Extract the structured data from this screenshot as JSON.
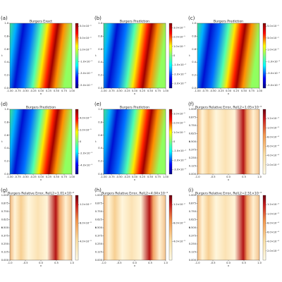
{
  "chart_data": [
    {
      "type": "heatmap",
      "label": "(a)",
      "title": "Burgers Exact",
      "xlabel": "x",
      "ylabel": "t",
      "colormap": "jet",
      "xlim": [
        -1,
        1
      ],
      "ylim": [
        0,
        1
      ],
      "xticks": [
        {
          "value": -1,
          "label": "-1.00"
        },
        {
          "value": -0.75,
          "label": "-0.75"
        },
        {
          "value": -0.5,
          "label": "-0.50"
        },
        {
          "value": -0.25,
          "label": "-0.25"
        },
        {
          "value": 0,
          "label": "0.00"
        },
        {
          "value": 0.25,
          "label": "0.25"
        },
        {
          "value": 0.5,
          "label": "0.50"
        },
        {
          "value": 0.75,
          "label": "0.75"
        },
        {
          "value": 1,
          "label": "1.00"
        }
      ],
      "yticks": [
        {
          "value": 0,
          "label": "0.0"
        },
        0.2,
        0.4,
        0.6,
        0.8,
        {
          "value": 1,
          "label": "1.0"
        }
      ],
      "clim": [
        -0.55,
        0.55
      ],
      "cticks": [
        {
          "value": 0.5,
          "label": "5.0×10⁻¹"
        },
        {
          "value": 0.3,
          "label": "3.0×10⁻¹"
        },
        {
          "value": 0.1,
          "label": "1.0×10⁻¹"
        },
        {
          "value": -0.1,
          "label": "-1.0×10⁻¹"
        },
        {
          "value": -0.3,
          "label": "-3.0×10⁻¹"
        },
        {
          "value": -0.5,
          "label": "-5.0×10⁻¹"
        }
      ]
    },
    {
      "type": "heatmap",
      "label": "(b)",
      "title": "Burgers Prediction",
      "xlabel": "x",
      "ylabel": "t",
      "colormap": "jet",
      "xlim": [
        -1,
        1
      ],
      "ylim": [
        0,
        1
      ],
      "xticks": [
        {
          "value": -1,
          "label": "-1.00"
        },
        {
          "value": -0.75,
          "label": "-0.75"
        },
        {
          "value": -0.5,
          "label": "-0.50"
        },
        {
          "value": -0.25,
          "label": "-0.25"
        },
        {
          "value": 0,
          "label": "0.00"
        },
        {
          "value": 0.25,
          "label": "0.25"
        },
        {
          "value": 0.5,
          "label": "0.50"
        },
        {
          "value": 0.75,
          "label": "0.75"
        },
        {
          "value": 1,
          "label": "1.00"
        }
      ],
      "yticks": [
        {
          "value": 0,
          "label": "0.0"
        },
        0.2,
        0.4,
        0.6,
        0.8,
        {
          "value": 1,
          "label": "1.0"
        }
      ],
      "clim": [
        -0.35,
        0.35
      ],
      "cticks": [
        {
          "value": 0.3,
          "label": "3.0×10⁻¹"
        },
        {
          "value": 0.2,
          "label": "2.0×10⁻¹"
        },
        {
          "value": 0.1,
          "label": "1.0×10⁻¹"
        },
        0.0,
        {
          "value": -0.1,
          "label": "-1.0×10⁻¹"
        },
        {
          "value": -0.2,
          "label": "-2.0×10⁻¹"
        },
        {
          "value": -0.3,
          "label": "-3.0×10⁻¹"
        }
      ]
    },
    {
      "type": "heatmap",
      "label": "(c)",
      "title": "Burgers Prediction",
      "xlabel": "x",
      "ylabel": "t",
      "colormap": "jet",
      "xlim": [
        -1,
        1
      ],
      "ylim": [
        0,
        1
      ],
      "xticks": [
        {
          "value": -1,
          "label": "-1.00"
        },
        {
          "value": -0.75,
          "label": "-0.75"
        },
        {
          "value": -0.5,
          "label": "-0.50"
        },
        {
          "value": -0.25,
          "label": "-0.25"
        },
        {
          "value": 0,
          "label": "0.00"
        },
        {
          "value": 0.25,
          "label": "0.25"
        },
        {
          "value": 0.5,
          "label": "0.50"
        },
        {
          "value": 0.75,
          "label": "0.75"
        },
        {
          "value": 1,
          "label": "1.00"
        }
      ],
      "yticks": [
        {
          "value": 0,
          "label": "0.0"
        },
        0.2,
        0.4,
        0.6,
        0.8,
        {
          "value": 1,
          "label": "1.0"
        }
      ],
      "clim": [
        -0.55,
        0.55
      ],
      "cticks": [
        {
          "value": 0.5,
          "label": "5.0×10⁻¹"
        },
        {
          "value": 0.3,
          "label": "3.0×10⁻¹"
        },
        {
          "value": 0.1,
          "label": "1.0×10⁻¹"
        },
        {
          "value": -0.1,
          "label": "-1.0×10⁻¹"
        },
        {
          "value": -0.3,
          "label": "-3.0×10⁻¹"
        },
        {
          "value": -0.5,
          "label": "-5.0×10⁻¹"
        }
      ]
    },
    {
      "type": "heatmap",
      "label": "(d)",
      "title": "Burgers Prediction",
      "xlabel": "x",
      "ylabel": "t",
      "colormap": "jet",
      "xlim": [
        -1,
        1
      ],
      "ylim": [
        0,
        1
      ],
      "xticks": [
        {
          "value": -1,
          "label": "-1.00"
        },
        {
          "value": -0.75,
          "label": "-0.75"
        },
        {
          "value": -0.5,
          "label": "-0.50"
        },
        {
          "value": -0.25,
          "label": "-0.25"
        },
        {
          "value": 0,
          "label": "0.00"
        },
        {
          "value": 0.25,
          "label": "0.25"
        },
        {
          "value": 0.5,
          "label": "0.50"
        },
        {
          "value": 0.75,
          "label": "0.75"
        },
        {
          "value": 1,
          "label": "1.00"
        }
      ],
      "yticks": [
        {
          "value": 0,
          "label": "0.0"
        },
        0.2,
        0.4,
        0.6,
        0.8,
        {
          "value": 1,
          "label": "1.0"
        }
      ],
      "clim": [
        -0.55,
        0.55
      ],
      "cticks": [
        {
          "value": 0.4,
          "label": "4.0×10⁻¹"
        },
        {
          "value": 0.2,
          "label": "2.0×10⁻¹"
        },
        0.0,
        {
          "value": -0.2,
          "label": "-2.0×10⁻¹"
        },
        {
          "value": -0.4,
          "label": "-4.0×10⁻¹"
        }
      ]
    },
    {
      "type": "heatmap",
      "label": "(e)",
      "title": "Burgers Prediction",
      "xlabel": "x",
      "ylabel": "t",
      "colormap": "jet",
      "xlim": [
        -1,
        1
      ],
      "ylim": [
        0,
        1
      ],
      "xticks": [
        {
          "value": -1,
          "label": "-1.00"
        },
        {
          "value": -0.75,
          "label": "-0.75"
        },
        {
          "value": -0.5,
          "label": "-0.50"
        },
        {
          "value": -0.25,
          "label": "-0.25"
        },
        {
          "value": 0,
          "label": "0.00"
        },
        {
          "value": 0.25,
          "label": "0.25"
        },
        {
          "value": 0.5,
          "label": "0.50"
        },
        {
          "value": 0.75,
          "label": "0.75"
        },
        {
          "value": 1,
          "label": "1.00"
        }
      ],
      "yticks": [
        {
          "value": 0,
          "label": "0.0"
        },
        0.2,
        0.4,
        0.6,
        0.8,
        {
          "value": 1,
          "label": "1.0"
        }
      ],
      "clim": [
        -0.35,
        0.35
      ],
      "cticks": [
        {
          "value": 0.3,
          "label": "3.0×10⁻¹"
        },
        {
          "value": 0.2,
          "label": "2.0×10⁻¹"
        },
        {
          "value": 0.1,
          "label": "1.0×10⁻¹"
        },
        0.0,
        {
          "value": -0.1,
          "label": "-1.0×10⁻¹"
        },
        {
          "value": -0.2,
          "label": "-2.0×10⁻¹"
        },
        {
          "value": -0.3,
          "label": "-3.0×10⁻¹"
        }
      ]
    },
    {
      "type": "heatmap",
      "label": "(f)",
      "title": "Burgers Relative Error, RelL2=1.05×10⁻³",
      "xlabel": "x",
      "ylabel": "t",
      "colormap": "YlOrRd",
      "xlim": [
        -1,
        1
      ],
      "ylim": [
        0,
        1
      ],
      "xticks": [
        {
          "value": -1,
          "label": "-1.0"
        },
        -0.5,
        {
          "value": 0,
          "label": "0.0"
        },
        0.5,
        {
          "value": 1,
          "label": "1.0"
        }
      ],
      "yticks": [
        {
          "value": 0,
          "label": "0.000"
        },
        0.125,
        {
          "value": 0.25,
          "label": "0.250"
        },
        0.375,
        {
          "value": 0.5,
          "label": "0.500"
        },
        0.625,
        {
          "value": 0.75,
          "label": "0.750"
        },
        0.875,
        {
          "value": 1,
          "label": "1.000"
        }
      ],
      "clim": [
        0,
        0.0014
      ],
      "cticks": [
        {
          "value": 0.0012,
          "label": "1.2×10⁻³"
        },
        {
          "value": 0.001,
          "label": "1.0×10⁻³"
        },
        {
          "value": 0.0008,
          "label": "8.0×10⁻⁴"
        },
        {
          "value": 0.0006,
          "label": "6.0×10⁻⁴"
        },
        {
          "value": 0.0004,
          "label": "4.0×10⁻⁴"
        },
        {
          "value": 0.0002,
          "label": "2.0×10⁻⁴"
        }
      ]
    },
    {
      "type": "heatmap",
      "label": "(g)",
      "title": "Burgers Relative Error, RelL2=1.01×10⁻²",
      "xlabel": "x",
      "ylabel": "t",
      "colormap": "YlOrRd",
      "xlim": [
        -1,
        1
      ],
      "ylim": [
        0,
        1
      ],
      "xticks": [
        {
          "value": -1,
          "label": "-1.0"
        },
        -0.5,
        {
          "value": 0,
          "label": "0.0"
        },
        0.5,
        {
          "value": 1,
          "label": "1.0"
        }
      ],
      "yticks": [
        {
          "value": 0,
          "label": "0.000"
        },
        0.125,
        {
          "value": 0.25,
          "label": "0.250"
        },
        0.375,
        {
          "value": 0.5,
          "label": "0.500"
        },
        0.625,
        {
          "value": 0.75,
          "label": "0.750"
        },
        0.875,
        {
          "value": 1,
          "label": "1.000"
        }
      ],
      "clim": [
        0,
        0.014
      ],
      "cticks": [
        {
          "value": 0.012,
          "label": "1.2×10⁻²"
        },
        {
          "value": 0.008,
          "label": "8.0×10⁻³"
        },
        {
          "value": 0.004,
          "label": "4.0×10⁻³"
        }
      ]
    },
    {
      "type": "heatmap",
      "label": "(h)",
      "title": "Burgers Relative Error, RelL2=4.04×10⁻³",
      "xlabel": "x",
      "ylabel": "t",
      "colormap": "YlOrRd",
      "xlim": [
        -1,
        1
      ],
      "ylim": [
        0,
        1
      ],
      "xticks": [
        {
          "value": -1,
          "label": "-1.0"
        },
        -0.5,
        {
          "value": 0,
          "label": "0.0"
        },
        0.5,
        {
          "value": 1,
          "label": "1.0"
        }
      ],
      "yticks": [
        {
          "value": 0,
          "label": "0.000"
        },
        0.125,
        {
          "value": 0.25,
          "label": "0.250"
        },
        0.375,
        {
          "value": 0.5,
          "label": "0.500"
        },
        0.625,
        {
          "value": 0.75,
          "label": "0.750"
        },
        0.875,
        {
          "value": 1,
          "label": "1.000"
        }
      ],
      "clim": [
        0,
        0.014
      ],
      "cticks": [
        {
          "value": 0.012,
          "label": "1.2×10⁻²"
        },
        {
          "value": 0.008,
          "label": "8.0×10⁻³"
        },
        {
          "value": 0.004,
          "label": "4.0×10⁻³"
        }
      ]
    },
    {
      "type": "heatmap",
      "label": "(i)",
      "title": "Burgers Relative Error, RelL2=2.51×10⁻³",
      "xlabel": "x",
      "ylabel": "t",
      "colormap": "YlOrRd",
      "xlim": [
        -1,
        1
      ],
      "ylim": [
        0,
        1
      ],
      "xticks": [
        {
          "value": -1,
          "label": "-1.0"
        },
        -0.5,
        {
          "value": 0,
          "label": "0.0"
        },
        0.5,
        {
          "value": 1,
          "label": "1.0"
        }
      ],
      "yticks": [
        {
          "value": 0,
          "label": "0.000"
        },
        0.125,
        {
          "value": 0.25,
          "label": "0.250"
        },
        0.375,
        {
          "value": 0.5,
          "label": "0.500"
        },
        0.625,
        {
          "value": 0.75,
          "label": "0.750"
        },
        0.875,
        {
          "value": 1,
          "label": "1.000"
        }
      ],
      "clim": [
        0,
        0.0014
      ],
      "cticks": [
        {
          "value": 0.0012,
          "label": "1.2×10⁻³"
        },
        {
          "value": 0.001,
          "label": "1.0×10⁻³"
        },
        {
          "value": 0.0008,
          "label": "8.0×10⁻⁴"
        },
        {
          "value": 0.0006,
          "label": "6.0×10⁻⁴"
        },
        {
          "value": 0.0004,
          "label": "4.0×10⁻⁴"
        },
        {
          "value": 0.0002,
          "label": "2.0×10⁻⁴"
        }
      ]
    }
  ]
}
